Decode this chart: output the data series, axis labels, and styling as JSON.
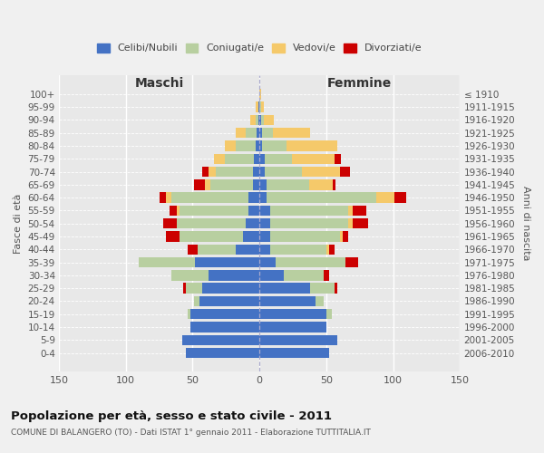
{
  "age_groups": [
    "100+",
    "95-99",
    "90-94",
    "85-89",
    "80-84",
    "75-79",
    "70-74",
    "65-69",
    "60-64",
    "55-59",
    "50-54",
    "45-49",
    "40-44",
    "35-39",
    "30-34",
    "25-29",
    "20-24",
    "15-19",
    "10-14",
    "5-9",
    "0-4"
  ],
  "birth_years": [
    "≤ 1910",
    "1911-1915",
    "1916-1920",
    "1921-1925",
    "1926-1930",
    "1931-1935",
    "1936-1940",
    "1941-1945",
    "1946-1950",
    "1951-1955",
    "1956-1960",
    "1961-1965",
    "1966-1970",
    "1971-1975",
    "1976-1980",
    "1981-1985",
    "1986-1990",
    "1991-1995",
    "1996-2000",
    "2001-2005",
    "2006-2010"
  ],
  "colors": {
    "celibi": "#4472c4",
    "coniugati": "#b8cfa0",
    "vedovi": "#f5c96a",
    "divorziati": "#cc0000"
  },
  "maschi": {
    "celibi": [
      0,
      1,
      1,
      2,
      3,
      4,
      5,
      5,
      8,
      8,
      10,
      12,
      18,
      48,
      38,
      43,
      45,
      52,
      52,
      58,
      55
    ],
    "coniugati": [
      0,
      0,
      2,
      8,
      15,
      22,
      28,
      32,
      58,
      52,
      52,
      48,
      28,
      42,
      28,
      12,
      4,
      2,
      0,
      0,
      0
    ],
    "vedovi": [
      0,
      2,
      4,
      8,
      8,
      8,
      5,
      4,
      4,
      2,
      0,
      0,
      0,
      0,
      0,
      0,
      0,
      0,
      0,
      0,
      0
    ],
    "divorziati": [
      0,
      0,
      0,
      0,
      0,
      0,
      5,
      8,
      5,
      5,
      10,
      10,
      8,
      0,
      0,
      2,
      0,
      0,
      0,
      0,
      0
    ]
  },
  "femmine": {
    "celibi": [
      0,
      0,
      1,
      2,
      2,
      4,
      4,
      5,
      5,
      8,
      8,
      8,
      8,
      12,
      18,
      38,
      42,
      50,
      50,
      58,
      52
    ],
    "coniugati": [
      0,
      1,
      2,
      8,
      18,
      20,
      28,
      32,
      82,
      58,
      58,
      52,
      42,
      52,
      30,
      18,
      6,
      4,
      0,
      0,
      0
    ],
    "vedovi": [
      1,
      2,
      8,
      28,
      38,
      32,
      28,
      18,
      14,
      4,
      4,
      2,
      2,
      0,
      0,
      0,
      0,
      0,
      0,
      0,
      0
    ],
    "divorziati": [
      0,
      0,
      0,
      0,
      0,
      5,
      8,
      2,
      9,
      10,
      11,
      4,
      4,
      10,
      4,
      2,
      0,
      0,
      0,
      0,
      0
    ]
  },
  "xlim": 150,
  "title": "Popolazione per età, sesso e stato civile - 2011",
  "subtitle": "COMUNE DI BALANGERO (TO) - Dati ISTAT 1° gennaio 2011 - Elaborazione TUTTITALIA.IT",
  "ylabel_left": "Fasce di età",
  "ylabel_right": "Anni di nascita",
  "xlabel_maschi": "Maschi",
  "xlabel_femmine": "Femmine",
  "legend_labels": [
    "Celibi/Nubili",
    "Coniugati/e",
    "Vedovi/e",
    "Divorziati/e"
  ],
  "background_color": "#f0f0f0",
  "plot_background": "#e8e8e8"
}
